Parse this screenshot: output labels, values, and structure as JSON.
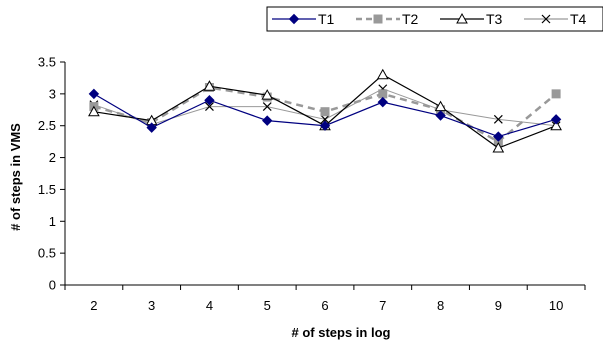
{
  "chart_data": {
    "type": "line",
    "x": [
      2,
      3,
      4,
      5,
      6,
      7,
      8,
      9,
      10
    ],
    "xlabel": "# of steps in log",
    "ylabel": "# of steps in VMS",
    "ylim": [
      0,
      3.5
    ],
    "yticks": [
      0,
      0.5,
      1,
      1.5,
      2,
      2.5,
      3,
      3.5
    ],
    "ytick_labels": [
      "0",
      "0.5",
      "1",
      "1.5",
      "2",
      "2.5",
      "3",
      "3.5"
    ],
    "grid": false,
    "legend_position": "top-right",
    "series": [
      {
        "name": "T1",
        "values": [
          3.0,
          2.47,
          2.9,
          2.58,
          2.5,
          2.87,
          2.66,
          2.33,
          2.6
        ],
        "color": "#000080",
        "marker": "diamond",
        "line_style": "solid"
      },
      {
        "name": "T2",
        "values": [
          2.8,
          2.55,
          3.1,
          2.95,
          2.72,
          3.0,
          2.75,
          2.25,
          3.0
        ],
        "color": "#999999",
        "marker": "square",
        "line_style": "dashed"
      },
      {
        "name": "T3",
        "values": [
          2.72,
          2.58,
          3.12,
          2.98,
          2.5,
          3.3,
          2.8,
          2.15,
          2.5
        ],
        "color": "#000000",
        "marker": "triangle",
        "line_style": "solid"
      },
      {
        "name": "T4",
        "values": [
          2.83,
          2.52,
          2.8,
          2.8,
          2.6,
          3.08,
          2.75,
          2.6,
          2.5
        ],
        "color": "#999999",
        "marker": "x",
        "line_style": "solid"
      }
    ]
  }
}
